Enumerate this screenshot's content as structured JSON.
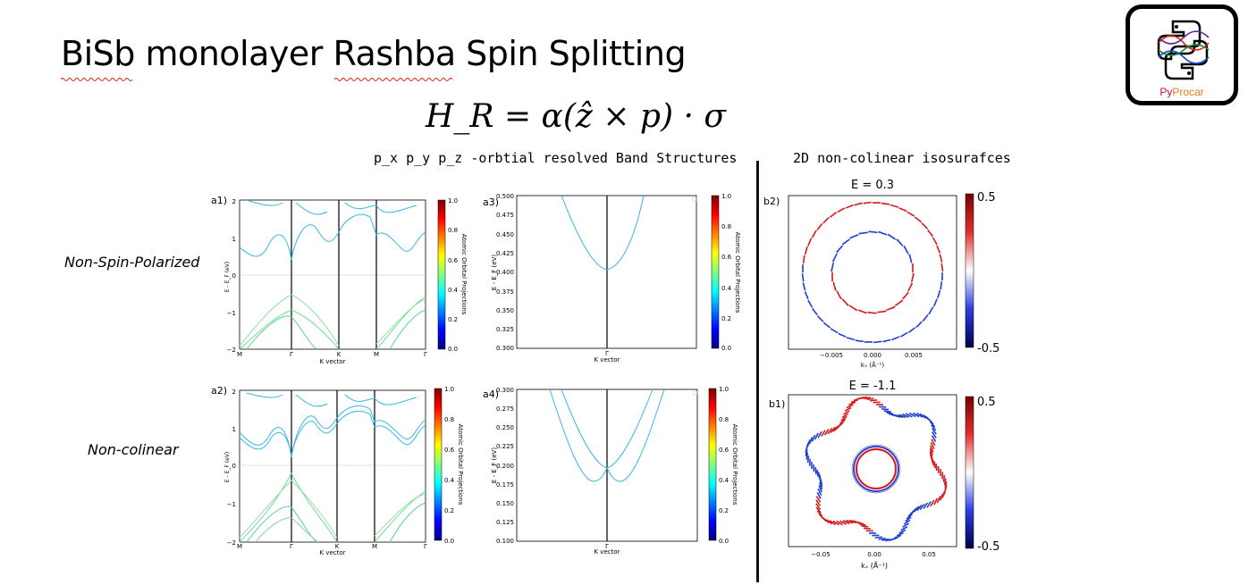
{
  "slide": {
    "title": "BiSb monolayer Rashba Spin Splitting",
    "formula": "H_R = α(ẑ × p) · σ",
    "band_section_title": "p_x p_y p_z -orbtial resolved Band Structures",
    "iso_section_title": "2D non-colinear isosurafces",
    "row_labels": [
      "Non-Spin-Polarized",
      "Non-colinear"
    ],
    "logo_text_py": "Py",
    "logo_text_procar": "Procar"
  },
  "plots": {
    "a1": {
      "panel_label": "a1)",
      "ylabel": "E - E_F (eV)",
      "xlabel": "K vector",
      "yticks": [
        "2",
        "1",
        "0",
        "−1",
        "−2"
      ],
      "xticks": [
        "M",
        "Γ",
        "K",
        "M",
        "Γ"
      ],
      "colorbar_label": "Atomic Orbital Projections",
      "colorbar_ticks": [
        "1.0",
        "0.8",
        "0.6",
        "0.4",
        "0.2",
        "0.0"
      ]
    },
    "a3": {
      "panel_label": "a3)",
      "ylabel": "E - E_F (eV)",
      "xlabel": "K vector",
      "yticks": [
        "0.500",
        "0.475",
        "0.450",
        "0.425",
        "0.400",
        "0.375",
        "0.350",
        "0.325",
        "0.300"
      ],
      "xticks": [
        "Γ"
      ],
      "colorbar_label": "Atomic Orbital Projections",
      "colorbar_ticks": [
        "1.0",
        "0.8",
        "0.6",
        "0.4",
        "0.2",
        "0.0"
      ]
    },
    "a2": {
      "panel_label": "a2)",
      "ylabel": "E - E_F (eV)",
      "xlabel": "K vector",
      "yticks": [
        "2",
        "1",
        "0",
        "−1",
        "−2"
      ],
      "xticks": [
        "M",
        "Γ",
        "K",
        "M",
        "Γ"
      ],
      "colorbar_label": "Atomic Orbital Projections",
      "colorbar_ticks": [
        "1.0",
        "0.8",
        "0.6",
        "0.4",
        "0.2",
        "0.0"
      ]
    },
    "a4": {
      "panel_label": "a4)",
      "ylabel": "E - E_F (eV)",
      "xlabel": "K vector",
      "yticks": [
        "0.300",
        "0.275",
        "0.250",
        "0.225",
        "0.200",
        "0.175",
        "0.150",
        "0.125",
        "0.100"
      ],
      "xticks": [
        "Γ"
      ],
      "colorbar_label": "Atomic Orbital Projections",
      "colorbar_ticks": [
        "1.0",
        "0.8",
        "0.6",
        "0.4",
        "0.2",
        "0.0"
      ]
    },
    "b2": {
      "panel_label": "b2)",
      "title": "E = 0.3",
      "xticks": [
        "−0.005",
        "0.000",
        "0.005"
      ],
      "xlabel": "kₓ (Å⁻¹)",
      "colorbar_ticks": [
        "0.5",
        "-0.5"
      ]
    },
    "b1": {
      "panel_label": "b1)",
      "title": "E = -1.1",
      "xticks": [
        "−0.05",
        "0.00",
        "0.05"
      ],
      "xlabel": "kₓ (Å⁻¹)",
      "colorbar_ticks": [
        "0.5",
        "-0.5"
      ]
    }
  },
  "colors": {
    "band_cyan": "#38b6e8",
    "band_green": "#6fdc8c",
    "spin_red": "#d7191c",
    "spin_blue": "#1f3fd1",
    "divider": "#111111"
  }
}
